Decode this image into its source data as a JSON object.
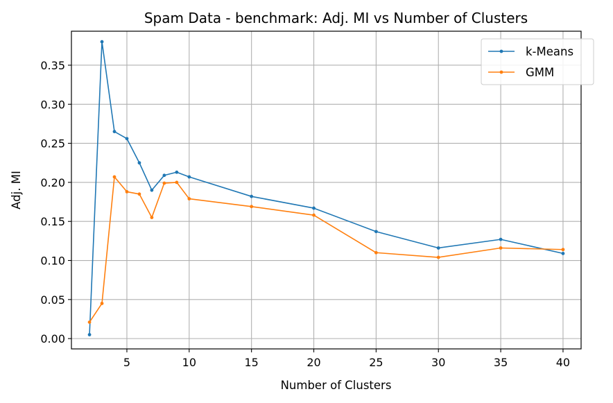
{
  "chart_data": {
    "type": "line",
    "title": "Spam Data - benchmark: Adj. MI vs Number of Clusters",
    "xlabel": "Number of Clusters",
    "ylabel": "Adj. MI",
    "x": [
      2,
      3,
      4,
      5,
      6,
      7,
      8,
      9,
      10,
      15,
      20,
      25,
      30,
      35,
      40
    ],
    "xlim": [
      0.55,
      41.45
    ],
    "ylim": [
      -0.0132,
      0.3935
    ],
    "xticks": [
      5,
      10,
      15,
      20,
      25,
      30,
      35,
      40
    ],
    "yticks": [
      0.0,
      0.05,
      0.1,
      0.15,
      0.2,
      0.25,
      0.3,
      0.35
    ],
    "ytick_labels": [
      "0.00",
      "0.05",
      "0.10",
      "0.15",
      "0.20",
      "0.25",
      "0.30",
      "0.35"
    ],
    "grid": true,
    "legend_position": "top-right",
    "series": [
      {
        "name": "k-Means",
        "color": "#1f77b4",
        "values": [
          0.005,
          0.38,
          0.265,
          0.256,
          0.225,
          0.19,
          0.209,
          0.213,
          0.207,
          0.182,
          0.167,
          0.137,
          0.116,
          0.127,
          0.109
        ]
      },
      {
        "name": "GMM",
        "color": "#ff7f0e",
        "values": [
          0.021,
          0.045,
          0.207,
          0.188,
          0.185,
          0.155,
          0.199,
          0.2,
          0.179,
          0.169,
          0.158,
          0.11,
          0.104,
          0.116,
          0.114
        ]
      }
    ]
  }
}
